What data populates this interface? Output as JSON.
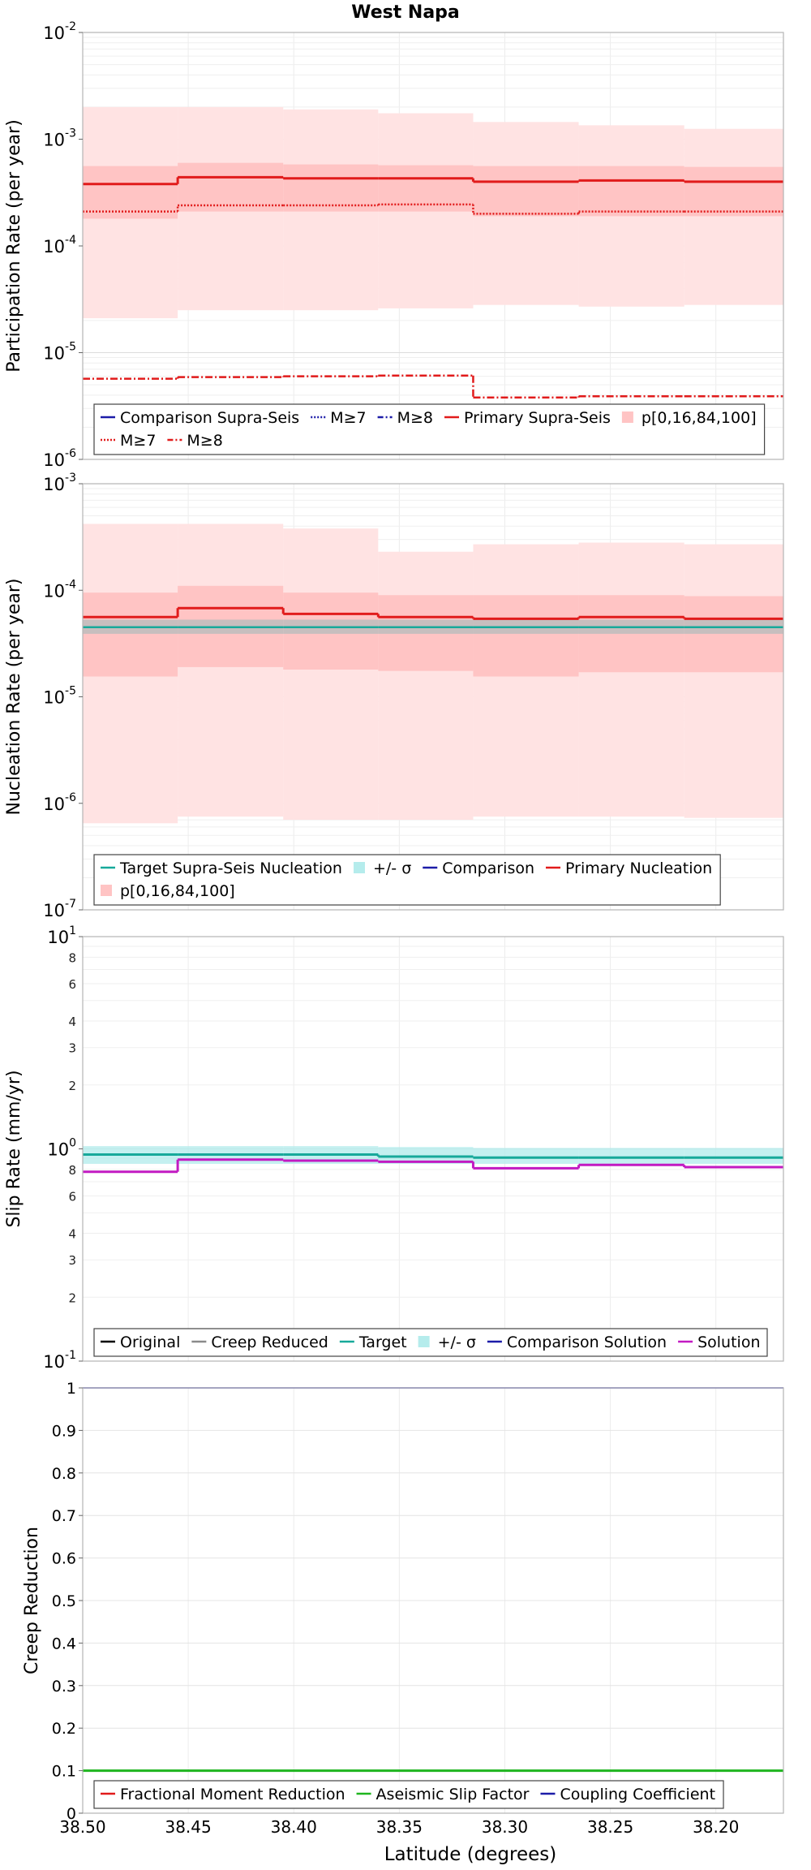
{
  "title": "West Napa",
  "xlabel": "Latitude (degrees)",
  "xticks": [
    "38.50",
    "38.45",
    "38.40",
    "38.35",
    "38.30",
    "38.25",
    "38.20"
  ],
  "colors": {
    "red": "#e11b1b",
    "band_dark": "#ffc4c4",
    "band_light": "#ffe3e3",
    "comparison": "#1c1ca8",
    "target": "#17a99a",
    "target_band": "#b5ecec",
    "solution": "#c21ac2",
    "green": "#1fb51f",
    "gray": "#8a8a8a",
    "gray_band": "#bdbdbd"
  },
  "chart_data": [
    {
      "id": "participation",
      "type": "line",
      "scale": "log",
      "ylabel": "Participation Rate (per year)",
      "ylim": [
        1e-06,
        0.01
      ],
      "yticks": [
        {
          "base": "10",
          "exp": "-6"
        },
        {
          "base": "10",
          "exp": "-5"
        },
        {
          "base": "10",
          "exp": "-4"
        },
        {
          "base": "10",
          "exp": "-3"
        },
        {
          "base": "10",
          "exp": "-2"
        }
      ],
      "x_edges": [
        38.5,
        38.455,
        38.405,
        38.36,
        38.315,
        38.265,
        38.215,
        38.168
      ],
      "series": [
        {
          "name": "Primary Supra-Seis",
          "values": [
            0.00038,
            0.00044,
            0.00043,
            0.00043,
            0.0004,
            0.00041,
            0.0004
          ]
        },
        {
          "name": "M≥7",
          "values": [
            0.00021,
            0.00024,
            0.00024,
            0.000245,
            0.0002,
            0.00021,
            0.00021
          ]
        },
        {
          "name": "M≥8",
          "values": [
            5.7e-06,
            5.9e-06,
            6e-06,
            6.1e-06,
            3.8e-06,
            3.9e-06,
            3.9e-06
          ]
        }
      ],
      "bands": [
        {
          "name": "p[0,16,84,100] outer",
          "low": [
            2.1e-05,
            2.5e-05,
            2.5e-05,
            2.6e-05,
            2.8e-05,
            2.7e-05,
            2.8e-05
          ],
          "high": [
            0.002,
            0.002,
            0.0019,
            0.00175,
            0.00145,
            0.00135,
            0.00125
          ]
        },
        {
          "name": "p[0,16,84,100] inner",
          "low": [
            0.00018,
            0.00021,
            0.00021,
            0.00021,
            0.00019,
            0.00019,
            0.00019
          ],
          "high": [
            0.00056,
            0.0006,
            0.00058,
            0.00057,
            0.00056,
            0.00056,
            0.00055
          ]
        }
      ],
      "legend": [
        [
          {
            "key": "comparison-solid",
            "label": "Comparison Supra-Seis"
          },
          {
            "key": "comparison-dotted",
            "label": "M≥7"
          },
          {
            "key": "comparison-dashdot",
            "label": "M≥8"
          },
          {
            "key": "red-solid",
            "label": "Primary Supra-Seis"
          },
          {
            "key": "band",
            "label": "p[0,16,84,100]"
          }
        ],
        [
          {
            "key": "red-dotted",
            "label": "M≥7"
          },
          {
            "key": "red-dashdot",
            "label": "M≥8"
          }
        ]
      ]
    },
    {
      "id": "nucleation",
      "type": "line",
      "scale": "log",
      "ylabel": "Nucleation Rate (per year)",
      "ylim": [
        1e-07,
        0.001
      ],
      "yticks": [
        {
          "base": "10",
          "exp": "-7"
        },
        {
          "base": "10",
          "exp": "-6"
        },
        {
          "base": "10",
          "exp": "-5"
        },
        {
          "base": "10",
          "exp": "-4"
        },
        {
          "base": "10",
          "exp": "-3"
        }
      ],
      "x_edges": [
        38.5,
        38.455,
        38.405,
        38.36,
        38.315,
        38.265,
        38.215,
        38.168
      ],
      "series": [
        {
          "name": "Primary Nucleation",
          "values": [
            5.6e-05,
            6.8e-05,
            6e-05,
            5.6e-05,
            5.4e-05,
            5.6e-05,
            5.4e-05
          ]
        },
        {
          "name": "Target Supra-Seis Nucleation",
          "values": [
            4.5e-05,
            4.5e-05,
            4.5e-05,
            4.5e-05,
            4.5e-05,
            4.5e-05,
            4.5e-05
          ]
        }
      ],
      "bands": [
        {
          "name": "p[0,16,84,100] outer",
          "low": [
            6.5e-07,
            7.5e-07,
            7e-07,
            7e-07,
            7.5e-07,
            7.5e-07,
            7.3e-07
          ],
          "high": [
            0.00042,
            0.00042,
            0.00038,
            0.00023,
            0.00027,
            0.00028,
            0.00027
          ]
        },
        {
          "name": "p[0,16,84,100] inner",
          "low": [
            1.55e-05,
            1.9e-05,
            1.8e-05,
            1.75e-05,
            1.55e-05,
            1.7e-05,
            1.7e-05
          ],
          "high": [
            9.5e-05,
            0.00011,
            9.5e-05,
            9e-05,
            9e-05,
            9e-05,
            8.8e-05
          ]
        },
        {
          "name": "+/- σ",
          "low": [
            3.9e-05,
            3.9e-05,
            3.9e-05,
            3.9e-05,
            3.9e-05,
            3.9e-05,
            3.9e-05
          ],
          "high": [
            5.3e-05,
            5.3e-05,
            5.3e-05,
            5.3e-05,
            5.3e-05,
            5.3e-05,
            5.3e-05
          ]
        }
      ],
      "legend": [
        [
          {
            "key": "target-solid",
            "label": "Target Supra-Seis Nucleation"
          },
          {
            "key": "target-band",
            "label": "+/- σ"
          },
          {
            "key": "comparison-solid",
            "label": "Comparison"
          },
          {
            "key": "red-solid",
            "label": "Primary Nucleation"
          }
        ],
        [
          {
            "key": "band",
            "label": "p[0,16,84,100]"
          }
        ]
      ]
    },
    {
      "id": "sliprate",
      "type": "line",
      "scale": "log",
      "ylabel": "Slip Rate (mm/yr)",
      "ylim": [
        0.1,
        10
      ],
      "yticks": [
        {
          "base": "10",
          "exp": "-1"
        },
        {
          "base": "10",
          "exp": "0"
        },
        {
          "base": "10",
          "exp": "1"
        }
      ],
      "minor_ticks": [
        {
          "value": 0.2,
          "label": "2"
        },
        {
          "value": 0.3,
          "label": "3"
        },
        {
          "value": 0.4,
          "label": "4"
        },
        {
          "value": 0.6,
          "label": "6"
        },
        {
          "value": 0.8,
          "label": "8"
        },
        {
          "value": 2,
          "label": "2"
        },
        {
          "value": 3,
          "label": "3"
        },
        {
          "value": 4,
          "label": "4"
        },
        {
          "value": 6,
          "label": "6"
        },
        {
          "value": 8,
          "label": "8"
        }
      ],
      "x_edges": [
        38.5,
        38.455,
        38.405,
        38.36,
        38.315,
        38.265,
        38.215,
        38.168
      ],
      "series": [
        {
          "name": "Target",
          "values": [
            0.94,
            0.94,
            0.94,
            0.92,
            0.91,
            0.91,
            0.91
          ]
        },
        {
          "name": "Solution",
          "values": [
            0.78,
            0.89,
            0.88,
            0.87,
            0.81,
            0.84,
            0.82
          ]
        }
      ],
      "bands": [
        {
          "name": "+/- σ",
          "low": [
            0.85,
            0.85,
            0.85,
            0.85,
            0.85,
            0.85,
            0.85
          ],
          "high": [
            1.03,
            1.03,
            1.03,
            1.02,
            1.01,
            1.01,
            1.01
          ]
        }
      ],
      "legend": [
        [
          {
            "key": "black-solid",
            "label": "Original"
          },
          {
            "key": "gray-solid",
            "label": "Creep Reduced"
          },
          {
            "key": "target-solid",
            "label": "Target"
          },
          {
            "key": "target-band",
            "label": "+/- σ"
          },
          {
            "key": "comparison-solid",
            "label": "Comparison Solution"
          },
          {
            "key": "solution-solid",
            "label": "Solution"
          }
        ]
      ]
    },
    {
      "id": "creep",
      "type": "line",
      "scale": "linear",
      "ylabel": "Creep Reduction",
      "ylim": [
        0,
        1
      ],
      "yticks": [
        "0",
        "0.1",
        "0.2",
        "0.3",
        "0.4",
        "0.5",
        "0.6",
        "0.7",
        "0.8",
        "0.9",
        "1"
      ],
      "x_edges": [
        38.5,
        38.168
      ],
      "series": [
        {
          "name": "Aseismic Slip Factor",
          "values": [
            0.1
          ]
        },
        {
          "name": "Coupling Coefficient",
          "values": [
            1.0
          ]
        }
      ],
      "legend": [
        [
          {
            "key": "red-solid",
            "label": "Fractional Moment Reduction"
          },
          {
            "key": "green-solid",
            "label": "Aseismic Slip Factor"
          },
          {
            "key": "comparison-solid",
            "label": "Coupling Coefficient"
          }
        ]
      ]
    }
  ]
}
